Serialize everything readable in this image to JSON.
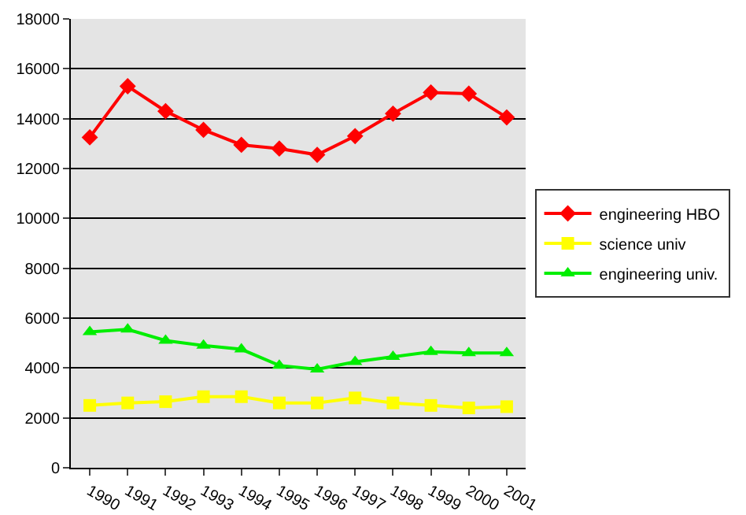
{
  "chart_data": {
    "type": "line",
    "categories": [
      "1990",
      "1991",
      "1992",
      "1993",
      "1994",
      "1995",
      "1996",
      "1997",
      "1998",
      "1999",
      "2000",
      "2001"
    ],
    "series": [
      {
        "name": "engineering HBO",
        "color": "#ff0000",
        "marker": "diamond",
        "values": [
          13250,
          15300,
          14300,
          13550,
          12950,
          12800,
          12550,
          13300,
          14200,
          15050,
          15000,
          14050
        ]
      },
      {
        "name": "science univ",
        "color": "#ffff00",
        "marker": "square",
        "values": [
          2500,
          2600,
          2650,
          2850,
          2850,
          2600,
          2600,
          2800,
          2600,
          2500,
          2400,
          2450
        ]
      },
      {
        "name": "engineering univ.",
        "color": "#00ee00",
        "marker": "triangle",
        "values": [
          5450,
          5550,
          5100,
          4900,
          4750,
          4100,
          3950,
          4250,
          4450,
          4650,
          4600,
          4600
        ]
      }
    ],
    "ylim": [
      0,
      18000
    ],
    "yticks": [
      0,
      2000,
      4000,
      6000,
      8000,
      10000,
      12000,
      14000,
      16000,
      18000
    ],
    "grid": "y",
    "legend": "right"
  }
}
